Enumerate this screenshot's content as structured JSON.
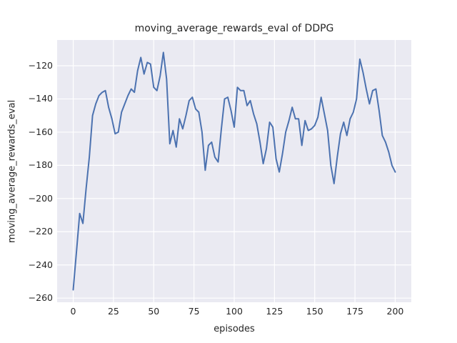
{
  "figure": {
    "title": "moving_average_rewards_eval of DDPG",
    "xlabel": "episodes",
    "ylabel": "moving_average_rewards_eval"
  },
  "chart_data": {
    "type": "line",
    "title": "moving_average_rewards_eval of DDPG",
    "xlabel": "episodes",
    "ylabel": "moving_average_rewards_eval",
    "legend": null,
    "grid": true,
    "style": "seaborn-darkgrid",
    "axes_bg": "#eaeaf2",
    "grid_color": "#ffffff",
    "line_color": "#4c72b0",
    "text_color": "#262626",
    "xlim": [
      -10,
      210
    ],
    "ylim": [
      -262.5,
      -104.5
    ],
    "xtick_values": [
      0,
      25,
      50,
      75,
      100,
      125,
      150,
      175,
      200
    ],
    "xtick_labels": [
      "0",
      "25",
      "50",
      "75",
      "100",
      "125",
      "150",
      "175",
      "200"
    ],
    "ytick_values": [
      -120,
      -140,
      -160,
      -180,
      -200,
      -220,
      -240,
      -260
    ],
    "ytick_labels": [
      "−120",
      "−140",
      "−160",
      "−180",
      "−200",
      "−220",
      "−240",
      "−260"
    ],
    "x": [
      0,
      2,
      4,
      6,
      8,
      10,
      12,
      14,
      16,
      18,
      20,
      22,
      24,
      26,
      28,
      30,
      32,
      34,
      36,
      38,
      40,
      42,
      44,
      46,
      48,
      50,
      52,
      54,
      56,
      58,
      60,
      62,
      64,
      66,
      68,
      70,
      72,
      74,
      76,
      78,
      80,
      82,
      84,
      86,
      88,
      90,
      92,
      94,
      96,
      98,
      100,
      102,
      104,
      106,
      108,
      110,
      112,
      114,
      116,
      118,
      120,
      122,
      124,
      126,
      128,
      130,
      132,
      134,
      136,
      138,
      140,
      142,
      144,
      146,
      148,
      150,
      152,
      154,
      156,
      158,
      160,
      162,
      164,
      166,
      168,
      170,
      172,
      174,
      176,
      178,
      180,
      182,
      184,
      186,
      188,
      190,
      192,
      194,
      196,
      198,
      200
    ],
    "y": [
      -255,
      -232,
      -209,
      -215,
      -194,
      -175,
      -150,
      -143,
      -138,
      -136,
      -135,
      -145,
      -152,
      -161,
      -160,
      -148,
      -143,
      -138,
      -134,
      -136,
      -123,
      -115,
      -125,
      -118,
      -119,
      -133,
      -135,
      -126,
      -112,
      -128,
      -167,
      -159,
      -169,
      -152,
      -158,
      -150,
      -141,
      -139,
      -146,
      -148,
      -160,
      -183,
      -168,
      -166,
      -175,
      -178,
      -158,
      -140,
      -139,
      -147,
      -157,
      -133,
      -135,
      -135,
      -144,
      -141,
      -149,
      -155,
      -166,
      -179,
      -170,
      -154,
      -157,
      -176,
      -184,
      -173,
      -160,
      -153,
      -145,
      -152,
      -152,
      -168,
      -153,
      -159,
      -158,
      -156,
      -151,
      -139,
      -149,
      -159,
      -180,
      -191,
      -175,
      -161,
      -154,
      -162,
      -152,
      -148,
      -140,
      -116,
      -124,
      -134,
      -143,
      -135,
      -134,
      -147,
      -162,
      -166,
      -172,
      -180,
      -184
    ]
  }
}
